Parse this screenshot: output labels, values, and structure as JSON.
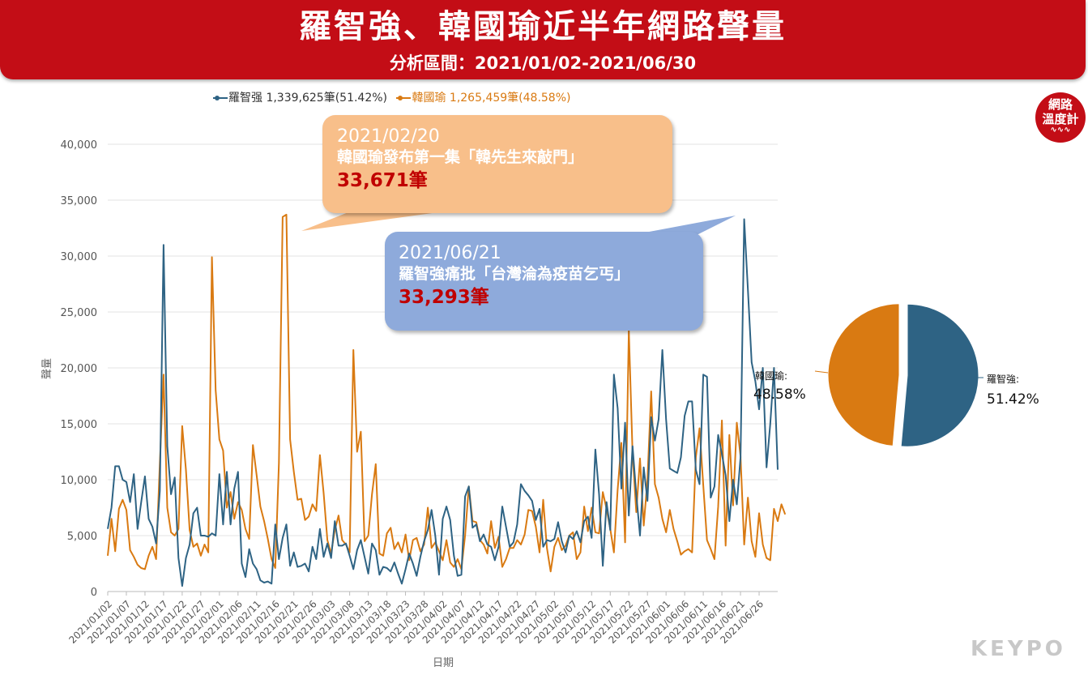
{
  "header": {
    "title": "羅智強、韓國瑜近半年網路聲量",
    "subtitle": "分析區間：2021/01/02-2021/06/30"
  },
  "legend": {
    "series1": "羅智强 1,339,625筆(51.42%)",
    "series2": "韓國瑜 1,265,459筆(48.58%)"
  },
  "badge": {
    "line1": "網路",
    "line2": "溫度計"
  },
  "brand": "KEYPO",
  "callouts": [
    {
      "date": "2021/02/20",
      "text": "韓國瑜發布第一集「韓先生來敲門」",
      "value": "33,671筆"
    },
    {
      "date": "2021/06/21",
      "text": "羅智強痛批「台灣淪為疫苗乞丐」",
      "value": "33,293筆"
    }
  ],
  "colors": {
    "banner": "#c30d16",
    "luo": "#2e6384",
    "han": "#d97a12"
  },
  "chart_data": {
    "type": "line",
    "xlabel": "日期",
    "ylabel": "聲量",
    "ylim": [
      0,
      40000
    ],
    "yticks": [
      0,
      5000,
      10000,
      15000,
      20000,
      25000,
      30000,
      35000,
      40000
    ],
    "ytick_labels": [
      "0",
      "5,000",
      "10,000",
      "15,000",
      "20,000",
      "25,000",
      "30,000",
      "35,000",
      "40,000"
    ],
    "x_start": "2021/01/02",
    "x_end": "2021/06/30",
    "xtick_labels": [
      "2021/01/02",
      "2021/01/07",
      "2021/01/12",
      "2021/01/17",
      "2021/01/22",
      "2021/01/27",
      "2021/02/01",
      "2021/02/06",
      "2021/02/11",
      "2021/02/16",
      "2021/02/21",
      "2021/02/26",
      "2021/03/03",
      "2021/03/08",
      "2021/03/13",
      "2021/03/18",
      "2021/03/23",
      "2021/03/28",
      "2021/04/02",
      "2021/04/07",
      "2021/04/12",
      "2021/04/17",
      "2021/04/22",
      "2021/04/27",
      "2021/05/02",
      "2021/05/07",
      "2021/05/12",
      "2021/05/17",
      "2021/05/22",
      "2021/05/27",
      "2021/06/01",
      "2021/06/06",
      "2021/06/11",
      "2021/06/16",
      "2021/06/21",
      "2021/06/26"
    ],
    "series": [
      {
        "name": "羅智强",
        "values": [
          5600,
          7500,
          11200,
          11200,
          10000,
          9800,
          8000,
          10500,
          5600,
          8000,
          10300,
          6500,
          5800,
          4300,
          9000,
          31000,
          13000,
          8700,
          10200,
          3000,
          500,
          3000,
          4200,
          7000,
          7500,
          5000,
          5000,
          4900,
          5200,
          5000,
          10500,
          6000,
          10700,
          6000,
          9200,
          10700,
          2500,
          1300,
          3800,
          2500,
          2000,
          1000,
          800,
          900,
          700,
          6000,
          2900,
          4800,
          6000,
          2300,
          3500,
          2200,
          2300,
          2500,
          1800,
          4000,
          2900,
          5600,
          3100,
          4300,
          3000,
          6300,
          4100,
          4100,
          4300,
          3200,
          2000,
          3700,
          4600,
          3100,
          1600,
          4300,
          3700,
          1500,
          2200,
          2100,
          1800,
          2600,
          1600,
          700,
          2000,
          3400,
          2500,
          1400,
          3100,
          4500,
          5500,
          7300,
          5000,
          1500,
          6500,
          7600,
          6400,
          3200,
          1400,
          1500,
          8500,
          9400,
          5700,
          6000,
          4500,
          5100,
          4200,
          4000,
          2800,
          4000,
          7600,
          5800,
          4000,
          4400,
          6000,
          9600,
          9000,
          8600,
          8100,
          6400,
          7400,
          4000,
          4600,
          4500,
          4700,
          6200,
          4500,
          3500,
          5000,
          4700,
          5400,
          4400,
          6300,
          6700,
          4800,
          12700,
          8700,
          2300,
          8000,
          5500,
          19400,
          16400,
          9200,
          15100,
          6800,
          13000,
          8700,
          5000,
          11100,
          8100,
          15600,
          13500,
          15400,
          21600,
          15400,
          11000,
          10800,
          10600,
          12000,
          15700,
          17000,
          17000,
          10900,
          9600,
          19400,
          19200,
          8400,
          9400,
          14000,
          12300,
          10400,
          6300,
          10000,
          7800,
          12000,
          33300,
          27000,
          20500,
          18800,
          16300,
          20000,
          11100,
          15000,
          20000,
          10900
        ]
      },
      {
        "name": "韓國瑜",
        "values": [
          3200,
          6500,
          3600,
          7400,
          8200,
          7300,
          3700,
          3100,
          2400,
          2100,
          2000,
          3200,
          4000,
          2900,
          11500,
          19400,
          7500,
          5300,
          5000,
          5600,
          14800,
          10900,
          5500,
          4000,
          4300,
          3200,
          4200,
          3500,
          29900,
          18000,
          13600,
          12600,
          7500,
          8900,
          6500,
          8000,
          7300,
          5600,
          4700,
          13100,
          10400,
          7600,
          6300,
          4700,
          2900,
          2100,
          11500,
          33500,
          33700,
          13600,
          10700,
          8200,
          8300,
          6400,
          6700,
          7800,
          7200,
          12200,
          8800,
          4600,
          3400,
          5500,
          6800,
          4600,
          4200,
          3500,
          21600,
          12500,
          14300,
          4500,
          5000,
          8700,
          11400,
          3400,
          3200,
          5200,
          5700,
          3800,
          4400,
          3500,
          5100,
          2800,
          4600,
          4800,
          3600,
          4200,
          7500,
          3900,
          4400,
          3600,
          2800,
          4600,
          2600,
          2200,
          2900,
          2000,
          5000,
          9400,
          6300,
          6200,
          4600,
          4200,
          3400,
          6300,
          3900,
          4900,
          2200,
          2900,
          3900,
          3900,
          4600,
          4200,
          5100,
          7300,
          7200,
          5800,
          3500,
          8200,
          3900,
          1800,
          4000,
          4800,
          3700,
          4100,
          5000,
          5300,
          2900,
          3500,
          7600,
          5400,
          7500,
          5300,
          5200,
          8900,
          7400,
          5600,
          3500,
          9100,
          13300,
          4400,
          23400,
          12400,
          7100,
          11900,
          5900,
          10000,
          17900,
          9600,
          8400,
          6500,
          5300,
          7300,
          5600,
          4500,
          3300,
          3600,
          3800,
          3500,
          12000,
          14600,
          9500,
          4600,
          3800,
          2900,
          7600,
          15300,
          4100,
          14000,
          7700,
          15100,
          12100,
          4200,
          8400,
          4500,
          3100,
          7000,
          4200,
          3000,
          2800,
          7400,
          6300,
          7800,
          6900
        ]
      }
    ],
    "pie": {
      "slices": [
        {
          "name": "羅智強",
          "label": "羅智強:",
          "value": 51.42,
          "text": "51.42%"
        },
        {
          "name": "韓國瑜",
          "label": "韓國瑜:",
          "value": 48.58,
          "text": "48.58%"
        }
      ]
    }
  }
}
